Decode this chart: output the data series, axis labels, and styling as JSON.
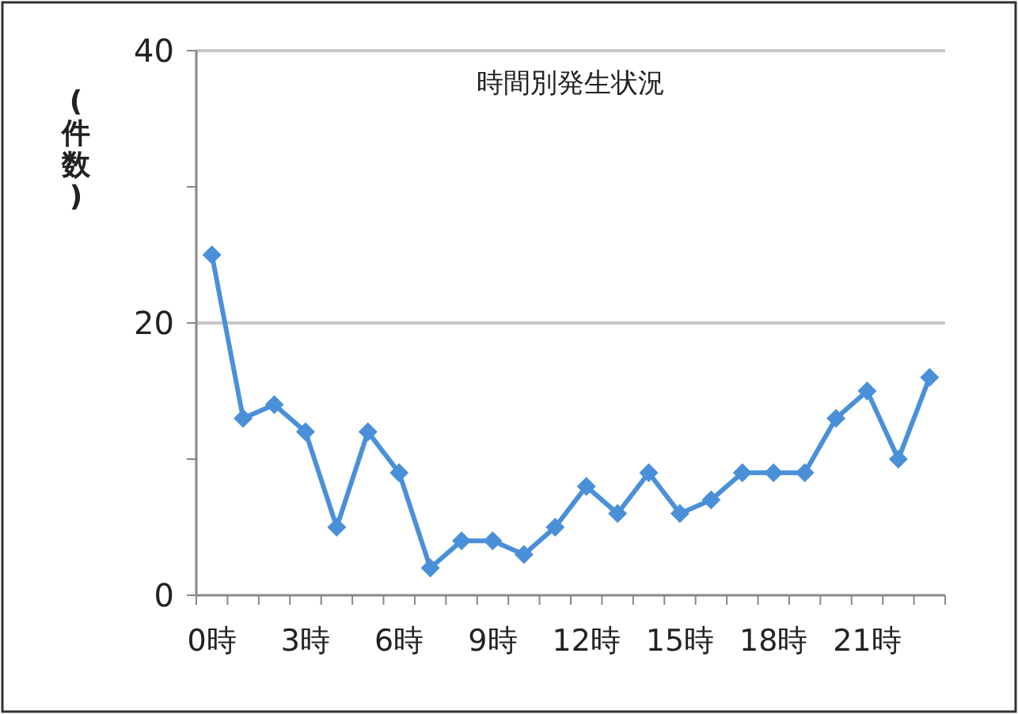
{
  "chart_data": {
    "type": "line",
    "title": "時間別発生状況",
    "ylabel": "(件数)",
    "categories": [
      "0時",
      null,
      null,
      "3時",
      null,
      null,
      "6時",
      null,
      null,
      "9時",
      null,
      null,
      "12時",
      null,
      null,
      "15時",
      null,
      null,
      "18時",
      null,
      null,
      "21時",
      null,
      null
    ],
    "series": [
      {
        "color": "#4a90d9",
        "values": [
          25,
          13,
          14,
          12,
          5,
          12,
          9,
          2,
          4,
          4,
          3,
          5,
          8,
          6,
          9,
          6,
          7,
          9,
          9,
          9,
          13,
          15,
          10,
          16
        ]
      }
    ],
    "ylim": [
      0,
      40
    ],
    "yticks": [
      0,
      {
        "value": 10,
        "label": null
      },
      20,
      {
        "value": 30,
        "label": null
      },
      40
    ],
    "grid": "y",
    "marker": "diamond",
    "line_style": "solid"
  }
}
